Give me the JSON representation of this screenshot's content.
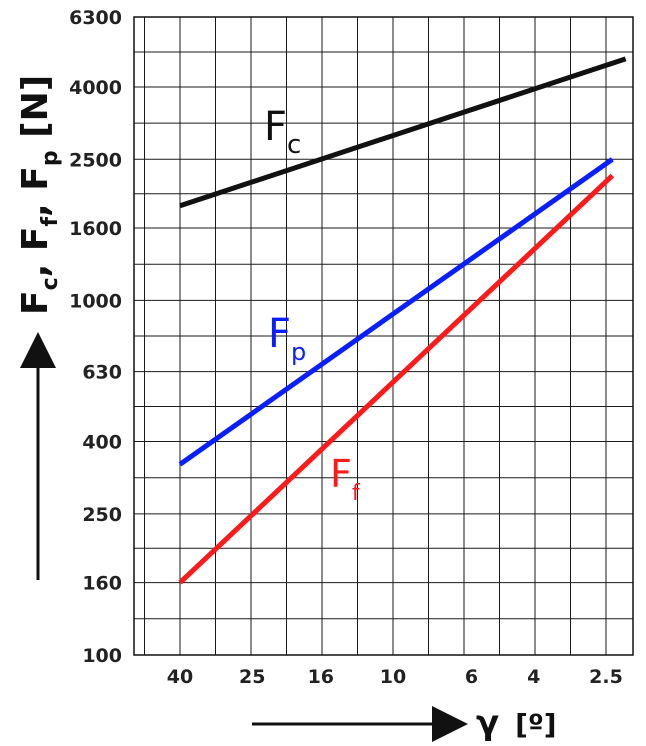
{
  "chart_data": {
    "type": "line",
    "x_axis": {
      "scale": "log-reciprocal",
      "ticks": [
        40,
        25,
        16,
        10,
        6,
        4,
        2.5
      ],
      "tick_labels": [
        "40",
        "25",
        "16",
        "10",
        "6",
        "4",
        "2.5"
      ],
      "label_main": "γ",
      "label_unit": "[º]"
    },
    "y_axis": {
      "scale": "log",
      "ylim": [
        100,
        6300
      ],
      "ticks": [
        100,
        160,
        250,
        400,
        630,
        1000,
        1600,
        2500,
        4000,
        6300
      ],
      "tick_labels": [
        "100",
        "160",
        "250",
        "400",
        "630",
        "1000",
        "1600",
        "2500",
        "4000",
        "6300"
      ]
    },
    "grid": true,
    "series": [
      {
        "name": "Fc",
        "label_main": "F",
        "label_sub": "c",
        "color": "#111111",
        "x": [
          40,
          2.2
        ],
        "y": [
          1850,
          4800
        ]
      },
      {
        "name": "Fp",
        "label_main": "F",
        "label_sub": "p",
        "color": "#0a1fff",
        "x": [
          40,
          2.4
        ],
        "y": [
          345,
          2500
        ]
      },
      {
        "name": "Ff",
        "label_main": "F",
        "label_sub": "f",
        "color": "#ff1a1a",
        "x": [
          40,
          2.4
        ],
        "y": [
          160,
          2250
        ]
      }
    ]
  }
}
